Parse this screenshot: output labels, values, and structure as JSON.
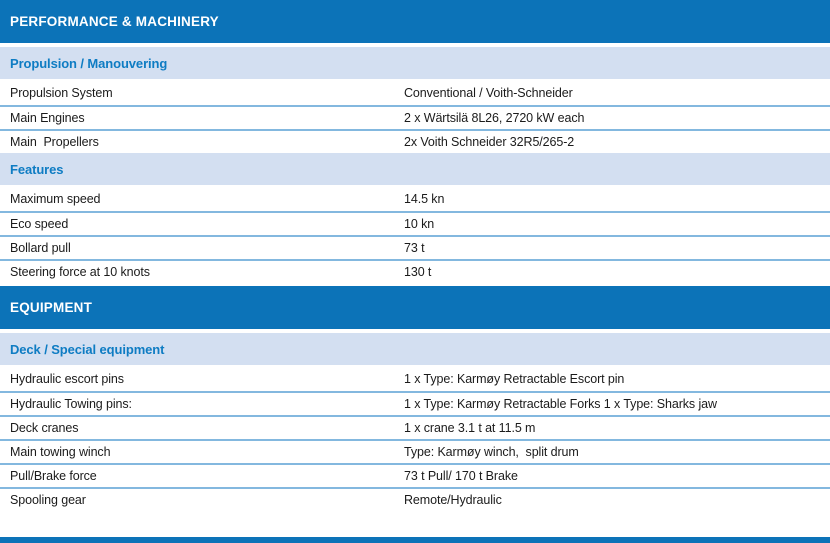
{
  "colors": {
    "header_bar": "#0C73B8",
    "header_text": "#FFFFFF",
    "subheader_bg": "#D3DFF1",
    "subheader_text": "#0E7CC3",
    "divider": "#83B8DF",
    "body_text": "#1B1B1B"
  },
  "sections": [
    {
      "title": "PERFORMANCE & MACHINERY",
      "groups": [
        {
          "heading": "Propulsion / Manouvering",
          "rows": [
            {
              "label": "Propulsion System",
              "value": "Conventional / Voith-Schneider"
            },
            {
              "label": "Main Engines",
              "value": "2 x Wärtsilä 8L26, 2720 kW each"
            },
            {
              "label": "Main  Propellers",
              "value": "2x Voith Schneider 32R5/265-2"
            }
          ]
        },
        {
          "heading": "Features",
          "rows": [
            {
              "label": "Maximum speed",
              "value": "14.5 kn"
            },
            {
              "label": "Eco speed",
              "value": "10 kn"
            },
            {
              "label": "Bollard pull",
              "value": "73 t"
            },
            {
              "label": "Steering force at 10 knots",
              "value": "130 t"
            }
          ]
        }
      ]
    },
    {
      "title": "EQUIPMENT",
      "groups": [
        {
          "heading": "Deck / Special equipment",
          "rows": [
            {
              "label": "Hydraulic escort pins",
              "value": "1 x Type: Karmøy Retractable Escort pin"
            },
            {
              "label": "Hydraulic Towing pins:",
              "value": "1 x Type: Karmøy Retractable Forks 1 x Type: Sharks jaw"
            },
            {
              "label": "Deck cranes",
              "value": "1 x crane 3.1 t at 11.5 m"
            },
            {
              "label": "Main towing winch",
              "value": "Type: Karmøy winch,  split drum"
            },
            {
              "label": "Pull/Brake force",
              "value": "73 t Pull/ 170 t Brake"
            },
            {
              "label": "Spooling gear",
              "value": "Remote/Hydraulic"
            }
          ]
        }
      ]
    }
  ]
}
